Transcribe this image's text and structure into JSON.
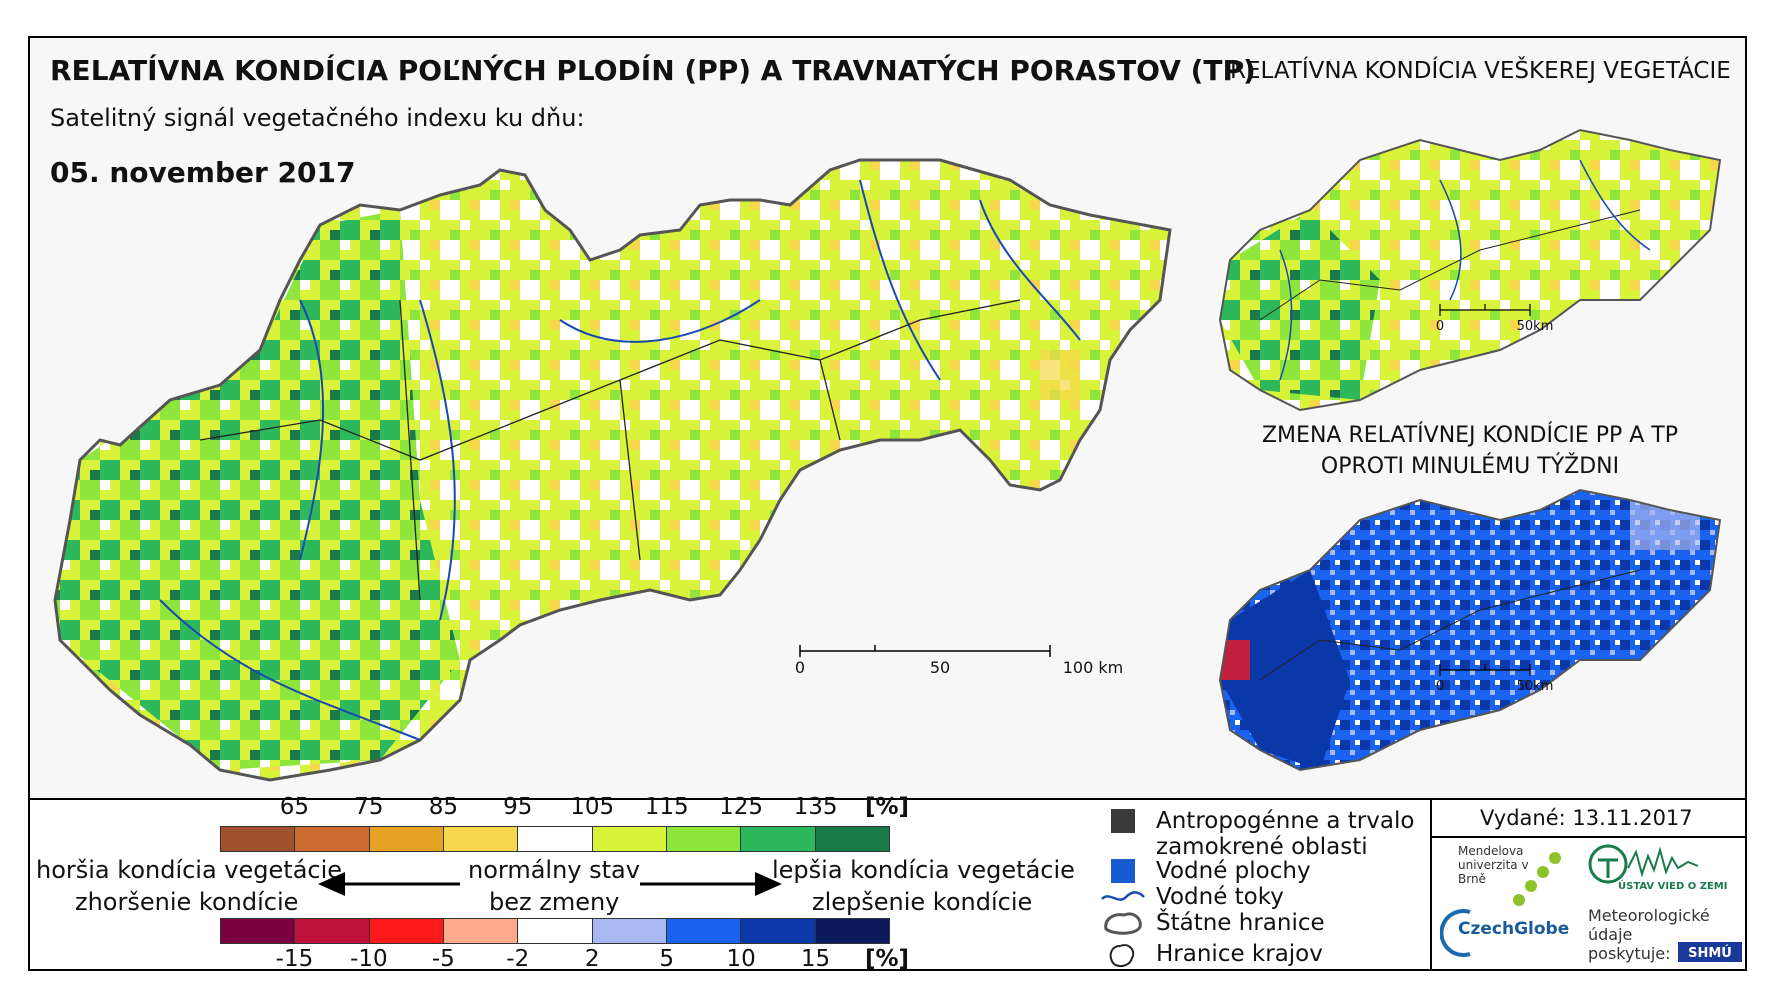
{
  "title": "RELATÍVNA KONDÍCIA POĽNÝCH PLODÍN (PP) A TRAVNATÝCH PORASTOV (TP)",
  "subtitle": "Satelitný signál vegetačného indexu ku dňu:",
  "date": "05. november 2017",
  "inset_top_title": "RELATÍVNA KONDÍCIA VEŠKEREJ VEGETÁCIE",
  "inset_bottom_title": "ZMENA RELATÍVNEJ KONDÍCIE PP A TP OPROTI MINULÉMU TÝŽDNI",
  "scale_main": {
    "labels": [
      "0",
      "50",
      "100 km"
    ]
  },
  "scale_inset_top": {
    "labels": [
      "0",
      "50km"
    ]
  },
  "scale_inset_bottom": {
    "labels": [
      "0",
      "50km"
    ]
  },
  "legend_condition": {
    "unit": "[%]",
    "ticks": [
      "65",
      "75",
      "85",
      "95",
      "105",
      "115",
      "125",
      "135"
    ],
    "colors": [
      "#a0522d",
      "#cd6b30",
      "#e6a323",
      "#f7d84a",
      "#ffffff",
      "#d9f23a",
      "#8ee63c",
      "#2eb85c",
      "#1a7a4a"
    ]
  },
  "legend_change": {
    "unit": "[%]",
    "ticks": [
      "-15",
      "-10",
      "-5",
      "-2",
      "2",
      "5",
      "10",
      "15"
    ],
    "colors": [
      "#7a0040",
      "#c0103c",
      "#ff1a1a",
      "#ffaa8c",
      "#ffffff",
      "#a8b8f0",
      "#1a62f0",
      "#0a38a8",
      "#0a1a5a"
    ]
  },
  "arrow_labels": {
    "left_top": "horšia kondícia vegetácie",
    "left_bottom": "zhoršenie kondície",
    "mid_top": "normálny stav",
    "mid_bottom": "bez zmeny",
    "right_top": "lepšia kondícia vegetácie",
    "right_bottom": "zlepšenie kondície"
  },
  "legend_symbols": [
    {
      "label": "Antropogénne a trvalo zamokrené oblasti",
      "symbol": "dark-square-icon",
      "color": "#3a3a3a"
    },
    {
      "label": "Vodné plochy",
      "symbol": "blue-square-icon",
      "color": "#1a5ad0"
    },
    {
      "label": "Vodné toky",
      "symbol": "river-line-icon",
      "color": "#1a4ab0"
    },
    {
      "label": "Štátne hranice",
      "symbol": "state-border-icon",
      "color": "#555555"
    },
    {
      "label": "Hranice krajov",
      "symbol": "region-border-icon",
      "color": "#222222"
    }
  ],
  "issued": "Vydané: 13.11.2017",
  "logos": {
    "mendel": "Mendelova univerzita v Brně",
    "czechglobe": "CzechGlobe",
    "ustav": "ÚSTAV VIED O ZEMI",
    "meteo": "Meteorologické údaje poskytuje:",
    "shmu": "SHMÚ"
  }
}
